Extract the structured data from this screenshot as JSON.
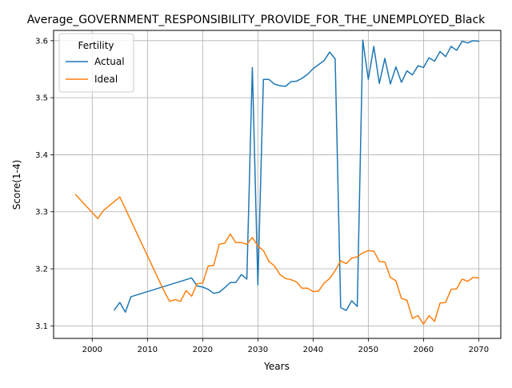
{
  "chart_data": {
    "type": "line",
    "title": "Average_GOVERNMENT_RESPONSIBILITY_PROVIDE_FOR_THE_UNEMPLOYED_Black",
    "xlabel": "Years",
    "ylabel": "Score(1-4)",
    "xlim": [
      1993,
      2074
    ],
    "ylim": [
      3.078,
      3.618
    ],
    "x_ticks": [
      2000,
      2010,
      2020,
      2030,
      2040,
      2050,
      2060,
      2070
    ],
    "y_ticks": [
      3.1,
      3.2,
      3.3,
      3.4,
      3.5,
      3.6
    ],
    "x_tick_labels": [
      "2000",
      "2010",
      "2020",
      "2030",
      "2040",
      "2050",
      "2060",
      "2070"
    ],
    "y_tick_labels": [
      "3.1",
      "3.2",
      "3.3",
      "3.4",
      "3.5",
      "3.6"
    ],
    "grid": true,
    "legend": {
      "title": "Fertility",
      "placement": "upper-left"
    },
    "series": [
      {
        "name": "Actual",
        "color": "#1f77b4",
        "x": [
          2004,
          2005,
          2006,
          2007,
          2018,
          2019,
          2020,
          2021,
          2022,
          2023,
          2024,
          2025,
          2026,
          2027,
          2028,
          2029,
          2030,
          2031,
          2032,
          2033,
          2034,
          2035,
          2036,
          2037,
          2038,
          2039,
          2040,
          2041,
          2042,
          2043,
          2044,
          2045,
          2046,
          2047,
          2048,
          2049,
          2050,
          2051,
          2052,
          2053,
          2054,
          2055,
          2056,
          2057,
          2058,
          2059,
          2060,
          2061,
          2062,
          2063,
          2064,
          2065,
          2066,
          2067,
          2068,
          2069,
          2070
        ],
        "values": [
          3.128,
          3.141,
          3.124,
          3.151,
          3.184,
          3.17,
          3.168,
          3.164,
          3.157,
          3.159,
          3.167,
          3.176,
          3.176,
          3.19,
          3.182,
          3.553,
          3.172,
          3.532,
          3.532,
          3.524,
          3.521,
          3.52,
          3.528,
          3.529,
          3.534,
          3.541,
          3.551,
          3.558,
          3.565,
          3.58,
          3.568,
          3.132,
          3.127,
          3.144,
          3.134,
          3.601,
          3.532,
          3.59,
          3.525,
          3.569,
          3.524,
          3.554,
          3.527,
          3.547,
          3.54,
          3.556,
          3.553,
          3.57,
          3.564,
          3.581,
          3.572,
          3.59,
          3.583,
          3.599,
          3.596,
          3.6,
          3.599
        ]
      },
      {
        "name": "Ideal",
        "color": "#ff7f0e",
        "x": [
          1997,
          2001,
          2002,
          2005,
          2013,
          2014,
          2015,
          2016,
          2017,
          2018,
          2019,
          2020,
          2021,
          2022,
          2023,
          2024,
          2025,
          2026,
          2027,
          2028,
          2029,
          2030,
          2031,
          2032,
          2033,
          2034,
          2035,
          2036,
          2037,
          2038,
          2039,
          2040,
          2041,
          2042,
          2043,
          2044,
          2045,
          2046,
          2047,
          2048,
          2049,
          2050,
          2051,
          2052,
          2053,
          2054,
          2055,
          2056,
          2057,
          2058,
          2059,
          2060,
          2061,
          2062,
          2063,
          2064,
          2065,
          2066,
          2067,
          2068,
          2069,
          2070
        ],
        "values": [
          3.33,
          3.288,
          3.302,
          3.326,
          3.161,
          3.143,
          3.146,
          3.143,
          3.162,
          3.152,
          3.174,
          3.175,
          3.205,
          3.206,
          3.243,
          3.245,
          3.261,
          3.246,
          3.246,
          3.243,
          3.255,
          3.24,
          3.232,
          3.213,
          3.205,
          3.19,
          3.183,
          3.181,
          3.177,
          3.166,
          3.166,
          3.16,
          3.161,
          3.175,
          3.183,
          3.197,
          3.214,
          3.209,
          3.219,
          3.221,
          3.228,
          3.232,
          3.231,
          3.213,
          3.212,
          3.185,
          3.179,
          3.148,
          3.145,
          3.113,
          3.118,
          3.103,
          3.118,
          3.108,
          3.14,
          3.141,
          3.164,
          3.165,
          3.182,
          3.178,
          3.185,
          3.184
        ]
      }
    ]
  }
}
